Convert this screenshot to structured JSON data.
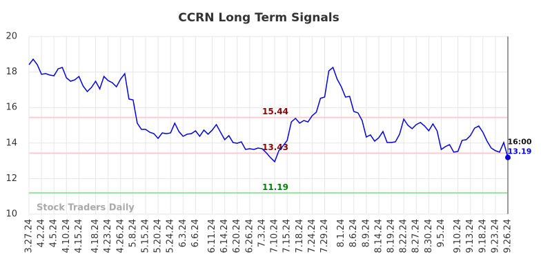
{
  "chart_data": {
    "type": "line",
    "title": "CCRN Long Term Signals",
    "watermark": "Stock Traders Daily",
    "end_label": "16:00",
    "ylim": [
      10,
      20
    ],
    "yticks": [
      10,
      12,
      14,
      16,
      18,
      20
    ],
    "grid": true,
    "categories": [
      "3.27.24",
      null,
      null,
      "4.2.24",
      null,
      null,
      "4.5.24",
      null,
      null,
      "4.10.24",
      null,
      null,
      "4.15.24",
      null,
      null,
      null,
      "4.18.24",
      null,
      null,
      "4.23.24",
      null,
      null,
      "4.26.24",
      null,
      null,
      "5.8.24",
      null,
      null,
      "5.15.24",
      null,
      null,
      "5.20.24",
      null,
      null,
      "5.24.24",
      null,
      null,
      "6.3.24",
      null,
      null,
      "6.6.24",
      null,
      null,
      null,
      "6.11.24",
      null,
      null,
      "6.14.24",
      null,
      null,
      "6.20.24",
      null,
      null,
      "6.26.24",
      null,
      null,
      "7.3.24",
      null,
      null,
      "7.10.24",
      null,
      null,
      "7.15.24",
      null,
      null,
      "7.18.24",
      null,
      null,
      "7.24.24",
      null,
      null,
      "7.29.24",
      null,
      null,
      null,
      "8.1.24",
      null,
      null,
      "8.6.24",
      null,
      null,
      "8.9.24",
      null,
      null,
      "8.14.24",
      null,
      null,
      "8.19.24",
      null,
      null,
      "8.22.24",
      null,
      null,
      "8.27.24",
      null,
      null,
      "8.30.24",
      null,
      null,
      "9.5.24",
      null,
      null,
      null,
      "9.10.24",
      null,
      null,
      "9.13.24",
      null,
      null,
      "9.18.24",
      null,
      null,
      "9.23.24",
      null,
      null,
      "9.26.24"
    ],
    "series": [
      {
        "color": "#0000dd",
        "values": [
          18.41,
          18.72,
          18.41,
          17.87,
          17.91,
          17.83,
          17.79,
          18.18,
          18.26,
          17.67,
          17.48,
          17.56,
          17.75,
          17.21,
          16.9,
          17.13,
          17.48,
          17.05,
          17.75,
          17.52,
          17.4,
          17.17,
          17.6,
          17.91,
          16.48,
          16.43,
          15.12,
          14.77,
          14.77,
          14.61,
          14.53,
          14.26,
          14.57,
          14.53,
          14.57,
          15.12,
          14.65,
          14.38,
          14.5,
          14.53,
          14.69,
          14.38,
          14.73,
          14.5,
          14.73,
          15.04,
          14.61,
          14.19,
          14.42,
          14.03,
          13.99,
          14.07,
          13.64,
          13.68,
          13.64,
          13.72,
          13.68,
          13.45,
          13.18,
          12.95,
          13.57,
          13.84,
          14.15,
          15.19,
          15.39,
          15.12,
          15.27,
          15.19,
          15.54,
          15.74,
          16.52,
          16.59,
          18.06,
          18.26,
          17.6,
          17.17,
          16.59,
          16.63,
          15.78,
          15.7,
          15.27,
          14.34,
          14.46,
          14.11,
          14.3,
          14.65,
          14.03,
          14.03,
          14.07,
          14.5,
          15.35,
          15.0,
          14.81,
          15.04,
          15.16,
          14.96,
          14.69,
          15.08,
          14.69,
          13.64,
          13.8,
          13.91,
          13.49,
          13.53,
          14.15,
          14.19,
          14.42,
          14.84,
          14.96,
          14.61,
          14.11,
          13.72,
          13.57,
          13.49,
          14.03,
          13.19
        ]
      }
    ],
    "reference_lines": [
      {
        "value": 15.44,
        "color": "#ffcccc",
        "label_color": "#8b0000"
      },
      {
        "value": 13.43,
        "color": "#ffcccc",
        "label_color": "#8b0000"
      },
      {
        "value": 11.19,
        "color": "#99dd99",
        "label_color": "#008000"
      }
    ]
  }
}
